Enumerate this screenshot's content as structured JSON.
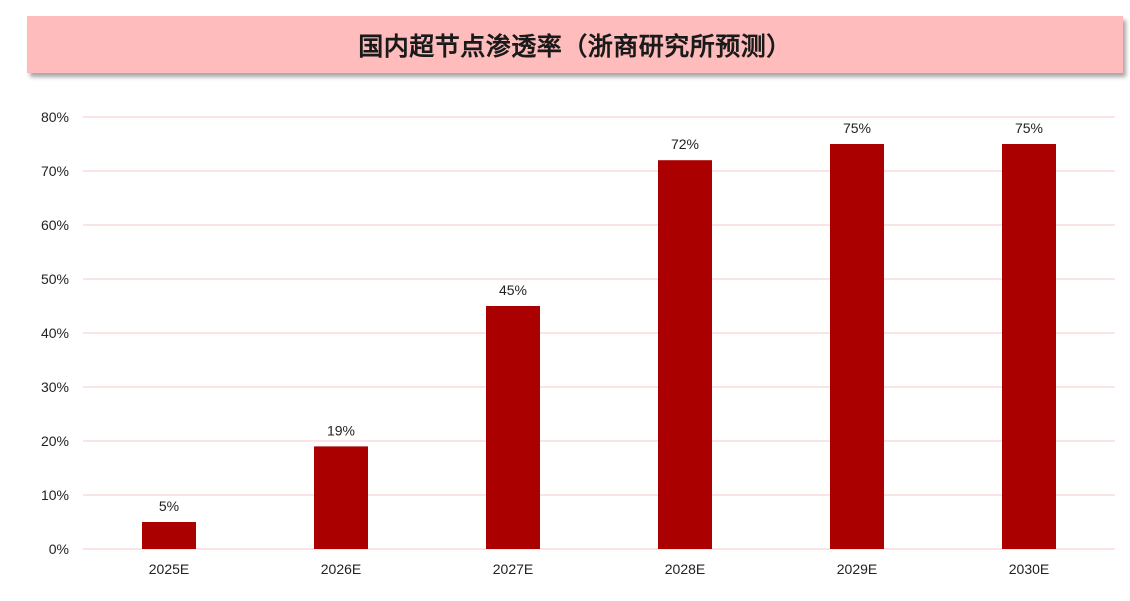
{
  "title": "国内超节点渗透率（浙商研究所预测）",
  "colors": {
    "banner": "#ffbcbc",
    "bar": "#aa0000",
    "gridline": "#f4c9c9"
  },
  "chart_data": {
    "type": "bar",
    "title": "国内超节点渗透率（浙商研究所预测）",
    "xlabel": "",
    "ylabel": "",
    "categories": [
      "2025E",
      "2026E",
      "2027E",
      "2028E",
      "2029E",
      "2030E"
    ],
    "values": [
      5,
      19,
      45,
      72,
      75,
      75
    ],
    "value_labels": [
      "5%",
      "19%",
      "45%",
      "72%",
      "75%",
      "75%"
    ],
    "ylim": [
      0,
      80
    ],
    "yticks": [
      0,
      10,
      20,
      30,
      40,
      50,
      60,
      70,
      80
    ],
    "ytick_labels": [
      "0%",
      "10%",
      "20%",
      "30%",
      "40%",
      "50%",
      "60%",
      "70%",
      "80%"
    ],
    "grid": true,
    "legend": "none"
  }
}
